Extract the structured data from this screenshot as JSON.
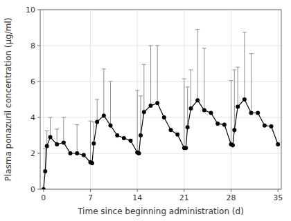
{
  "chart_data": {
    "type": "line",
    "xlabel": "Time since beginning administration (d)",
    "ylabel": "Plasma ponazuril concentration (μg/ml)",
    "x": [
      0,
      0.25,
      0.5,
      1,
      2,
      3,
      4,
      5,
      6,
      7,
      7.25,
      7.5,
      8,
      9,
      10,
      11,
      12,
      13,
      14,
      14.25,
      14.5,
      15,
      16,
      17,
      18,
      19,
      20,
      21,
      21.25,
      21.5,
      22,
      23,
      24,
      25,
      26,
      27,
      28,
      28.25,
      28.5,
      29,
      30,
      31,
      32,
      33,
      34,
      35
    ],
    "values": [
      0,
      1.0,
      2.4,
      2.9,
      2.5,
      2.6,
      2.0,
      2.0,
      1.9,
      1.5,
      1.45,
      2.55,
      3.75,
      4.1,
      3.55,
      3.0,
      2.85,
      2.7,
      2.05,
      2.0,
      3.0,
      4.3,
      4.65,
      4.8,
      4.0,
      3.3,
      3.05,
      2.3,
      2.3,
      3.45,
      4.5,
      4.95,
      4.4,
      4.25,
      3.65,
      3.6,
      2.5,
      2.45,
      3.3,
      4.6,
      5.0,
      4.25,
      4.25,
      3.55,
      3.5,
      2.5
    ],
    "yerr_upper": [
      0,
      1.25,
      0.85,
      1.1,
      0.85,
      1.4,
      0,
      1.6,
      0,
      2.3,
      0,
      1.2,
      1.25,
      2.6,
      2.45,
      0,
      0,
      0,
      3.45,
      0,
      2.2,
      2.65,
      3.35,
      3.2,
      0,
      0,
      0,
      3.85,
      0,
      2.25,
      2.15,
      3.95,
      3.45,
      0,
      0,
      0,
      3.55,
      0,
      3.35,
      2.2,
      3.75,
      3.3,
      0,
      0,
      0,
      0
    ],
    "color": "#000000",
    "marker": "circle",
    "xlim": [
      -0.5,
      35.5
    ],
    "ylim": [
      0,
      10
    ],
    "xticks": [
      0,
      7,
      14,
      21,
      28,
      35
    ],
    "yticks": [
      0,
      2,
      4,
      6,
      8,
      10
    ]
  }
}
